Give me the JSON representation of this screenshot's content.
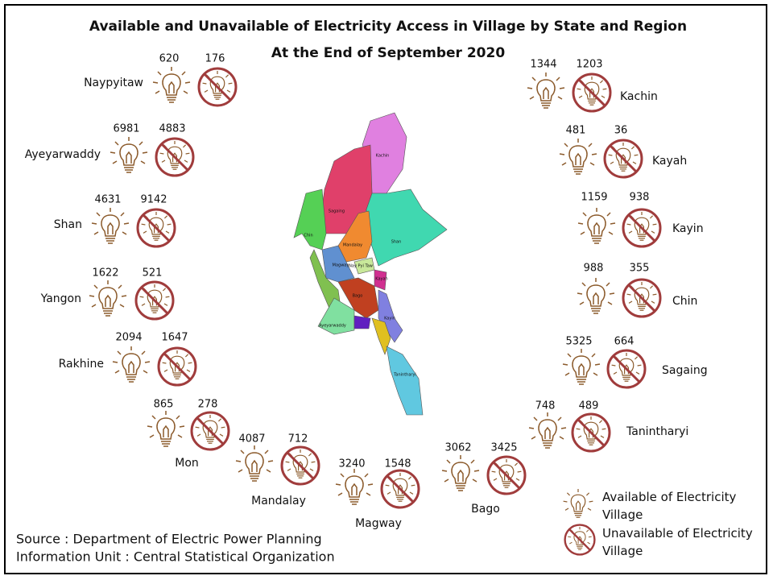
{
  "header": {
    "title": "Available and Unavailable of Electricity Access in Village by State and Region",
    "subtitle": "At the End of  September 2020"
  },
  "regions": [
    {
      "name": "Naypyitaw",
      "available": 620,
      "unavailable": 176
    },
    {
      "name": "Ayeyarwaddy",
      "available": 6981,
      "unavailable": 4883
    },
    {
      "name": "Shan",
      "available": 4631,
      "unavailable": 9142
    },
    {
      "name": "Yangon",
      "available": 1622,
      "unavailable": 521
    },
    {
      "name": "Rakhine",
      "available": 2094,
      "unavailable": 1647
    },
    {
      "name": "Mon",
      "available": 865,
      "unavailable": 278
    },
    {
      "name": "Mandalay",
      "available": 4087,
      "unavailable": 712
    },
    {
      "name": "Magway",
      "available": 3240,
      "unavailable": 1548
    },
    {
      "name": "Bago",
      "available": 3062,
      "unavailable": 3425
    },
    {
      "name": "Tanintharyi",
      "available": 748,
      "unavailable": 489
    },
    {
      "name": "Sagaing",
      "available": 5325,
      "unavailable": 664
    },
    {
      "name": "Chin",
      "available": 988,
      "unavailable": 355
    },
    {
      "name": "Kayin",
      "available": 1159,
      "unavailable": 938
    },
    {
      "name": "Kayah",
      "available": 481,
      "unavailable": 36
    },
    {
      "name": "Kachin",
      "available": 1344,
      "unavailable": 1203
    }
  ],
  "map": {
    "labels": [
      "Kachin",
      "Sagaing",
      "Chin",
      "Shan",
      "Mandalay",
      "Magway",
      "Nay Pyi Taw",
      "Kayah",
      "Bago",
      "Kayin",
      "Ayeyarwaddy",
      "Tanintharyi"
    ]
  },
  "legend": {
    "available": "Available of Electricity Village",
    "unavailable": "Unavailable of Electricity Village"
  },
  "footer": {
    "source": "Source : Department of Electric Power Planning",
    "unit": "Information Unit : Central Statistical Organization"
  }
}
